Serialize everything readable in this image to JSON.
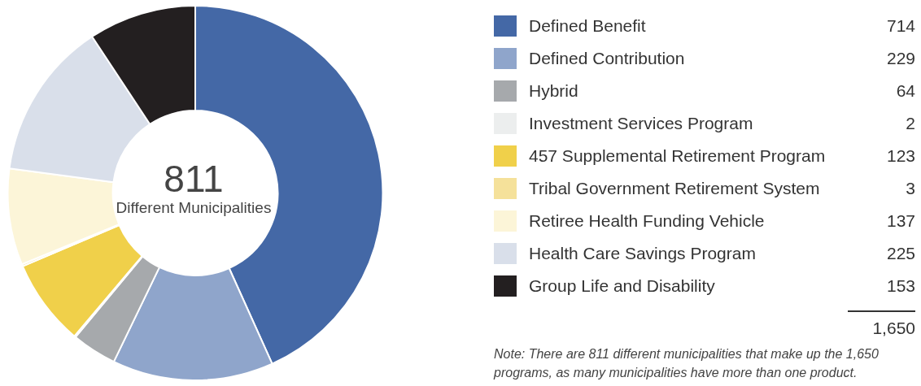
{
  "chart_data": {
    "type": "donut",
    "categories": [
      "Defined Benefit",
      "Defined Contribution",
      "Hybrid",
      "Investment Services Program",
      "457 Supplemental Retirement Program",
      "Tribal Government Retirement System",
      "Retiree Health Funding Vehicle",
      "Health Care Savings Program",
      "Group Life and Disability"
    ],
    "values": [
      714,
      229,
      64,
      2,
      123,
      3,
      137,
      225,
      153
    ],
    "colors": [
      "#4468a6",
      "#8fa5cb",
      "#a6a9ac",
      "#eceeee",
      "#f0d04a",
      "#f5e19a",
      "#fcf5d8",
      "#d9dfea",
      "#231f20"
    ],
    "data_labels": true,
    "legend": "right",
    "annotations": [
      "811",
      "Different Municipalities",
      "1,650",
      "Note: There are 811 different municipalities that make up the 1,650 programs, as many municipalities have more than one product."
    ]
  }
}
